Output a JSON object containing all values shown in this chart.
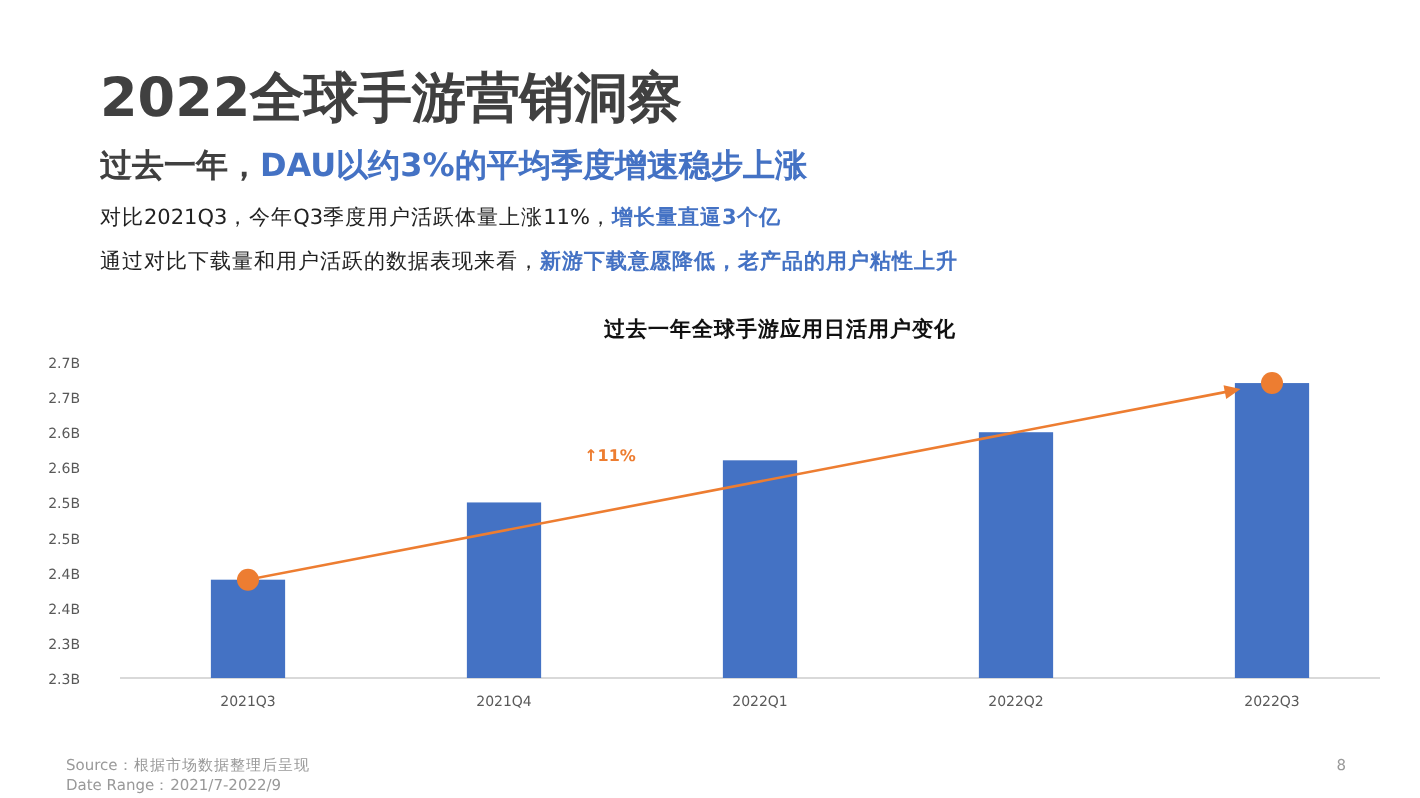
{
  "chart_data": {
    "type": "bar",
    "title": "过去一年全球手游应用日活用户变化",
    "subtitle": "2022全球手游营销洞察",
    "annotations": [
      "过去一年，",
      "DAU以约3%的平均季度增速稳步上涨",
      "对比2021Q3，今年Q3季度用户活跃体量上涨11%，",
      "增长量直逼3个亿",
      "通过对比下载量和用户活跃的数据表现来看，",
      "新游下载意愿降低，老产品的用户粘性上升",
      "↑11%",
      "Source：根据市场数据整理后呈现",
      "Date Range：2021/7-2022/9",
      "8"
    ],
    "categories": [
      "2021Q3",
      "2021Q4",
      "2022Q1",
      "2022Q2",
      "2022Q3"
    ],
    "series": [
      {
        "color": "#4472c4",
        "values": [
          2.44,
          2.55,
          2.61,
          2.65,
          2.72
        ]
      },
      {
        "type": "line",
        "color": "#ed7d31",
        "marker": "circle",
        "x": [
          "2021Q3",
          "2022Q3"
        ],
        "values": [
          2.44,
          2.72
        ]
      }
    ],
    "ylim": [
      2.3,
      2.75
    ],
    "yticks": [
      {
        "value": 2.3,
        "label": "2.3B"
      },
      {
        "value": 2.35,
        "label": "2.3B"
      },
      {
        "value": 2.4,
        "label": "2.4B"
      },
      {
        "value": 2.45,
        "label": "2.4B"
      },
      {
        "value": 2.5,
        "label": "2.5B"
      },
      {
        "value": 2.55,
        "label": "2.5B"
      },
      {
        "value": 2.6,
        "label": "2.6B"
      },
      {
        "value": 2.65,
        "label": "2.6B"
      },
      {
        "value": 2.7,
        "label": "2.7B"
      },
      {
        "value": 2.75,
        "label": "2.7B"
      }
    ]
  }
}
